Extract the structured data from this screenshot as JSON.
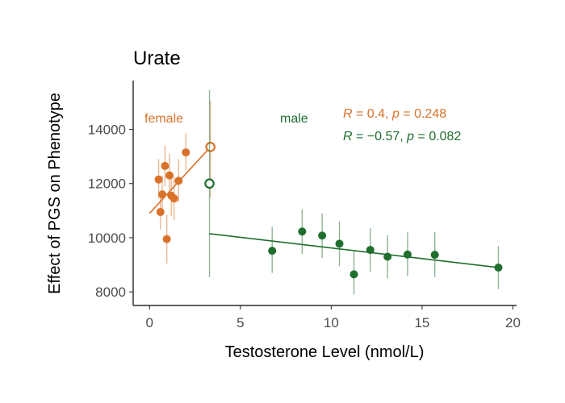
{
  "chart_data": {
    "type": "scatter",
    "title": "Urate",
    "xlabel": "Testosterone Level (nmol/L)",
    "ylabel": "Effect of PGS on Phenotype",
    "xlim": [
      -0.9,
      20.2
    ],
    "ylim": [
      7500,
      15800
    ],
    "x_ticks": [
      0,
      5,
      10,
      15,
      20
    ],
    "x_tick_labels": [
      "0",
      "5",
      "10",
      "15",
      "20"
    ],
    "y_ticks": [
      8000,
      10000,
      12000,
      14000
    ],
    "y_tick_labels": [
      "8000",
      "10000",
      "12000",
      "14000"
    ],
    "grid": false,
    "series": [
      {
        "name": "female",
        "color": "#d8722a",
        "points": [
          {
            "x": 0.5,
            "y": 12150,
            "ylo": 11450,
            "yhi": 12900
          },
          {
            "x": 0.6,
            "y": 10950,
            "ylo": 10300,
            "yhi": 11600
          },
          {
            "x": 0.7,
            "y": 11600,
            "ylo": 10850,
            "yhi": 12300
          },
          {
            "x": 0.85,
            "y": 12650,
            "ylo": 11900,
            "yhi": 13400
          },
          {
            "x": 0.95,
            "y": 9950,
            "ylo": 9050,
            "yhi": 10850
          },
          {
            "x": 1.1,
            "y": 12300,
            "ylo": 11550,
            "yhi": 13100
          },
          {
            "x": 1.2,
            "y": 11550,
            "ylo": 10800,
            "yhi": 12300
          },
          {
            "x": 1.35,
            "y": 11450,
            "ylo": 10650,
            "yhi": 12250
          },
          {
            "x": 1.6,
            "y": 12100,
            "ylo": 11300,
            "yhi": 12900
          },
          {
            "x": 2.0,
            "y": 13150,
            "ylo": 12500,
            "yhi": 13850
          },
          {
            "x": 3.35,
            "y": 13350,
            "ylo": 11500,
            "yhi": 15050,
            "open": true
          }
        ],
        "fit": {
          "x": [
            0.0,
            3.35
          ],
          "y": [
            10900,
            13350
          ]
        },
        "label": "female",
        "stat_r": "0.4",
        "stat_p": "0.248"
      },
      {
        "name": "male",
        "color": "#1f6e2e",
        "points": [
          {
            "x": 3.3,
            "y": 12000,
            "ylo": 8550,
            "yhi": 15450,
            "open": true
          },
          {
            "x": 6.75,
            "y": 9520,
            "ylo": 8700,
            "yhi": 10400
          },
          {
            "x": 8.4,
            "y": 10230,
            "ylo": 9400,
            "yhi": 11050
          },
          {
            "x": 9.5,
            "y": 10080,
            "ylo": 9250,
            "yhi": 10900
          },
          {
            "x": 10.45,
            "y": 9780,
            "ylo": 8950,
            "yhi": 10600
          },
          {
            "x": 11.25,
            "y": 8650,
            "ylo": 7900,
            "yhi": 9500
          },
          {
            "x": 12.15,
            "y": 9550,
            "ylo": 8750,
            "yhi": 10350
          },
          {
            "x": 13.1,
            "y": 9300,
            "ylo": 8500,
            "yhi": 10100
          },
          {
            "x": 14.2,
            "y": 9380,
            "ylo": 8600,
            "yhi": 10200
          },
          {
            "x": 15.7,
            "y": 9370,
            "ylo": 8550,
            "yhi": 10200
          },
          {
            "x": 19.2,
            "y": 8900,
            "ylo": 8100,
            "yhi": 9700
          }
        ],
        "fit": {
          "x": [
            3.3,
            19.2
          ],
          "y": [
            10150,
            8900
          ]
        },
        "label": "male",
        "stat_r": "−0.57",
        "stat_p": "0.082"
      }
    ]
  }
}
